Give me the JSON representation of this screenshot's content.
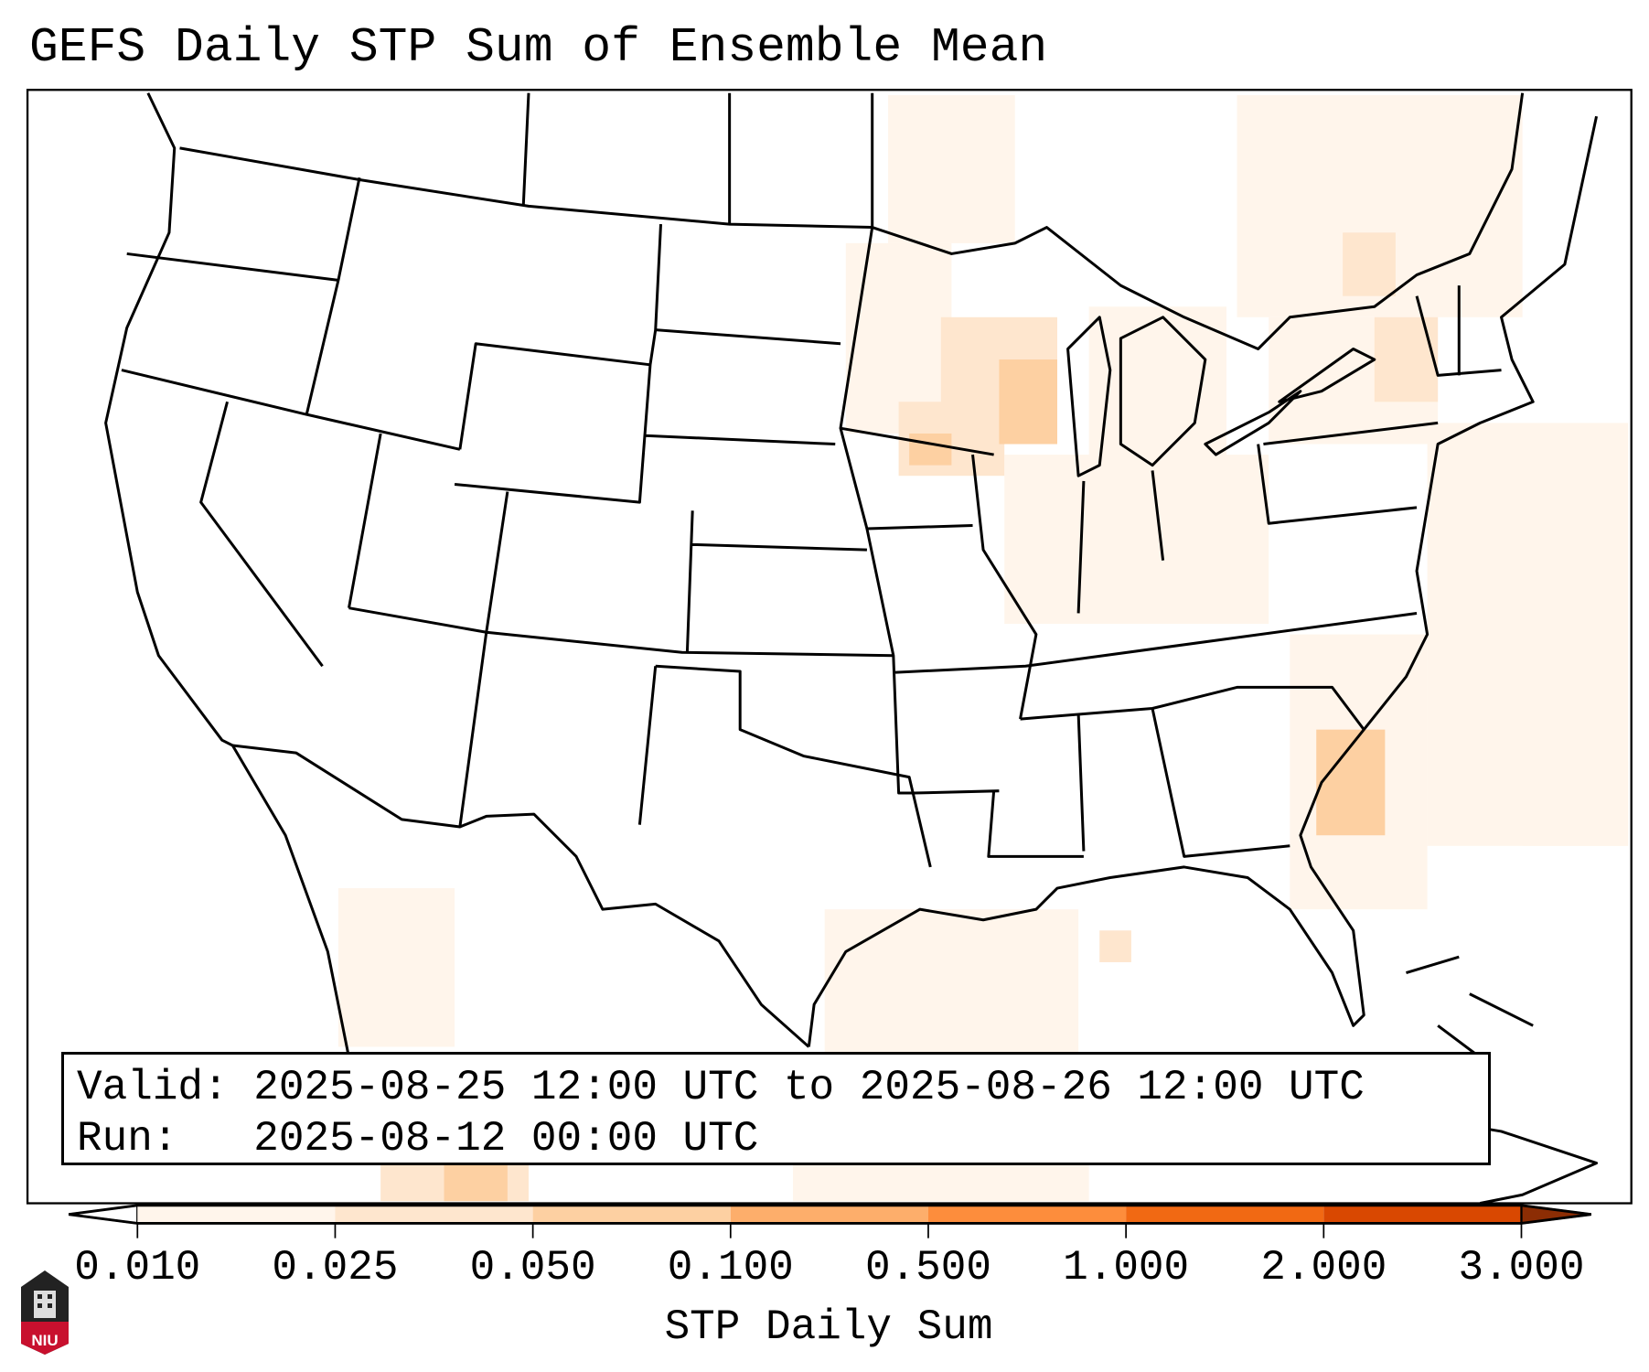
{
  "title": "GEFS Daily STP Sum of Ensemble Mean",
  "info": {
    "valid_label": "Valid:",
    "valid_value": "2025-08-25 12:00 UTC to 2025-08-26 12:00 UTC",
    "run_label": "Run:",
    "run_value": "2025-08-12 00:00 UTC"
  },
  "colorbar": {
    "label": "STP Daily Sum",
    "ticks": [
      "0.010",
      "0.025",
      "0.050",
      "0.100",
      "0.500",
      "1.000",
      "2.000",
      "3.000"
    ],
    "colors": [
      "#fff5eb",
      "#fee6ce",
      "#fdd0a2",
      "#fdae6b",
      "#fd8d3c",
      "#f16913",
      "#d94801"
    ],
    "under_color": "#ffffff",
    "over_color": "#8c2d04"
  },
  "logo": {
    "text": "NIU"
  }
}
